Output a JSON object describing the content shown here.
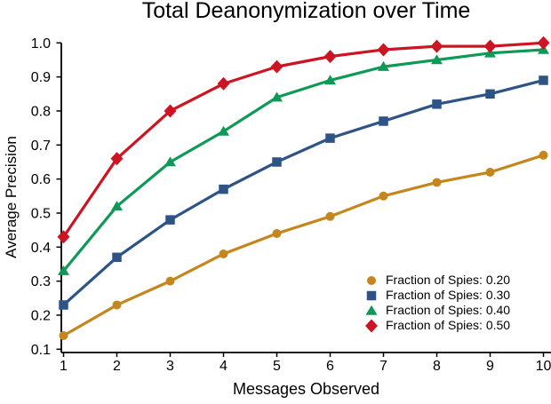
{
  "chart_data": {
    "type": "line",
    "title": "Total Deanonymization over Time",
    "xlabel": "Messages Observed",
    "ylabel": "Average Precision",
    "x": [
      1,
      2,
      3,
      4,
      5,
      6,
      7,
      8,
      9,
      10
    ],
    "x_ticks": [
      "1",
      "2",
      "3",
      "4",
      "5",
      "6",
      "7",
      "8",
      "9",
      "10"
    ],
    "y_ticks": [
      "0.1",
      "0.2",
      "0.3",
      "0.4",
      "0.5",
      "0.6",
      "0.7",
      "0.8",
      "0.9",
      "1.0"
    ],
    "xlim": [
      1,
      10
    ],
    "ylim": [
      0.1,
      1.0
    ],
    "grid": false,
    "legend_position": "lower-right-inside",
    "axis_color": "#000000",
    "background_color": "#ffffff",
    "series": [
      {
        "name": "Fraction of Spies: 0.20",
        "marker": "circle",
        "color": "#C5861D",
        "values": [
          0.14,
          0.23,
          0.3,
          0.38,
          0.44,
          0.49,
          0.55,
          0.59,
          0.62,
          0.67
        ]
      },
      {
        "name": "Fraction of Spies: 0.30",
        "marker": "square",
        "color": "#2E5385",
        "values": [
          0.23,
          0.37,
          0.48,
          0.57,
          0.65,
          0.72,
          0.77,
          0.82,
          0.85,
          0.89
        ]
      },
      {
        "name": "Fraction of Spies: 0.40",
        "marker": "triangle",
        "color": "#0E9A56",
        "values": [
          0.33,
          0.52,
          0.65,
          0.74,
          0.84,
          0.89,
          0.93,
          0.95,
          0.97,
          0.98
        ]
      },
      {
        "name": "Fraction of Spies: 0.50",
        "marker": "diamond",
        "color": "#CC1422",
        "values": [
          0.43,
          0.66,
          0.8,
          0.88,
          0.93,
          0.96,
          0.98,
          0.99,
          0.99,
          1.0
        ]
      }
    ]
  }
}
